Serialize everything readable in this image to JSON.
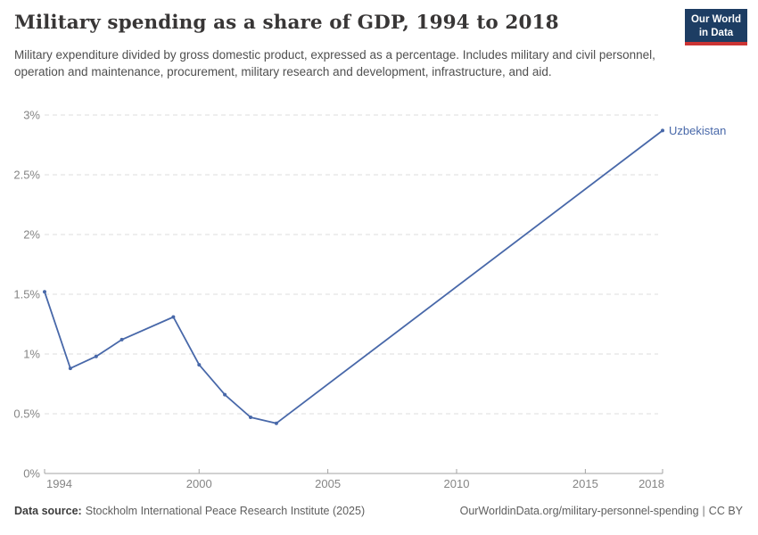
{
  "header": {
    "title": "Military spending as a share of GDP, 1994 to 2018",
    "subtitle": "Military expenditure divided by gross domestic product, expressed as a percentage. Includes military and civil personnel, operation and maintenance, procurement, military research and development, infrastructure, and aid.",
    "logo": {
      "line1": "Our World",
      "line2": "in Data",
      "bg_color": "#1d3d63",
      "accent_color": "#cb3434"
    }
  },
  "chart_data": {
    "type": "line",
    "title": "Military spending as a share of GDP, 1994 to 2018",
    "xlabel": "",
    "ylabel": "",
    "xlim": [
      1994,
      2018
    ],
    "ylim": [
      0,
      3
    ],
    "grid": "horizontal-dashed",
    "legend_position": "end-of-line-label",
    "xticks": [
      {
        "value": 1994,
        "label": "1994"
      },
      {
        "value": 2000,
        "label": "2000"
      },
      {
        "value": 2005,
        "label": "2005"
      },
      {
        "value": 2010,
        "label": "2010"
      },
      {
        "value": 2015,
        "label": "2015"
      },
      {
        "value": 2018,
        "label": "2018"
      }
    ],
    "yticks": [
      {
        "value": 0,
        "label": "0%"
      },
      {
        "value": 0.5,
        "label": "0.5%"
      },
      {
        "value": 1,
        "label": "1%"
      },
      {
        "value": 1.5,
        "label": "1.5%"
      },
      {
        "value": 2,
        "label": "2%"
      },
      {
        "value": 2.5,
        "label": "2.5%"
      },
      {
        "value": 3,
        "label": "3%"
      }
    ],
    "series": [
      {
        "name": "Uzbekistan",
        "color": "#4868a9",
        "points": [
          {
            "x": 1994,
            "y": 1.52
          },
          {
            "x": 1995,
            "y": 0.88
          },
          {
            "x": 1996,
            "y": 0.98
          },
          {
            "x": 1997,
            "y": 1.12
          },
          {
            "x": 1999,
            "y": 1.31
          },
          {
            "x": 2000,
            "y": 0.91
          },
          {
            "x": 2001,
            "y": 0.66
          },
          {
            "x": 2002,
            "y": 0.47
          },
          {
            "x": 2003,
            "y": 0.42
          },
          {
            "x": 2018,
            "y": 2.87
          }
        ]
      }
    ]
  },
  "footer": {
    "source_label": "Data source:",
    "source_text": "Stockholm International Peace Research Institute (2025)",
    "link": "OurWorldinData.org/military-personnel-spending",
    "separator": "|",
    "license": "CC BY"
  }
}
